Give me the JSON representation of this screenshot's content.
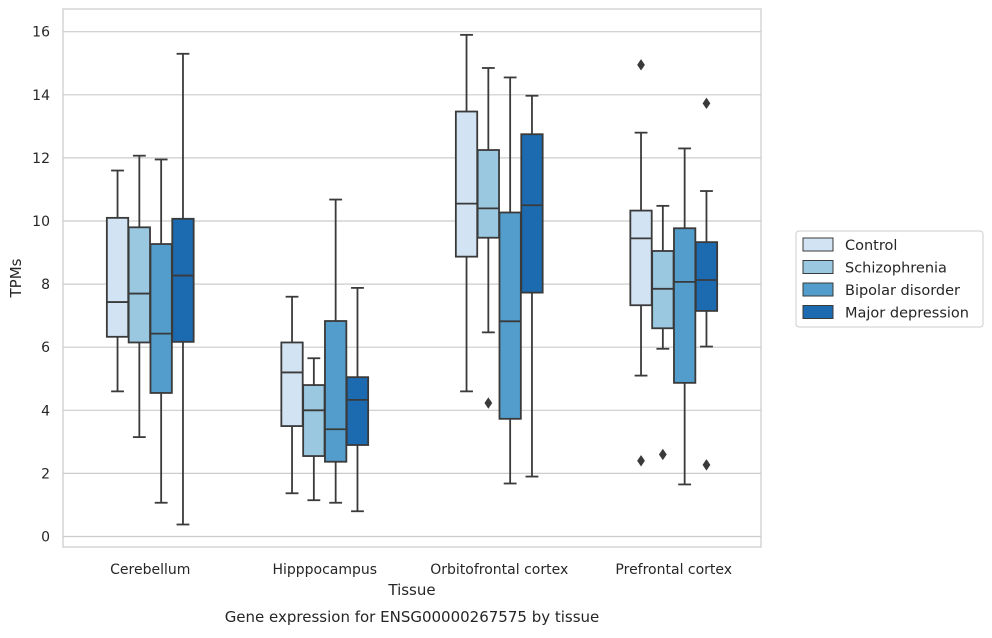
{
  "caption": "Gene expression for ENSG00000267575 by tissue",
  "chart_data": {
    "type": "boxplot",
    "xlabel": "Tissue",
    "ylabel": "TPMs",
    "ylim": [
      -0.35,
      16.7
    ],
    "yticks": [
      0,
      2,
      4,
      6,
      8,
      10,
      12,
      14,
      16
    ],
    "grid": true,
    "legend_placement": "right",
    "categories": [
      "Cerebellum",
      "Hipppocampus",
      "Orbitofrontal cortex",
      "Prefrontal cortex"
    ],
    "series": [
      {
        "name": "Control",
        "color": "#d2e3f3",
        "boxes": [
          {
            "whisker_low": 4.6,
            "q1": 6.33,
            "median": 7.43,
            "q3": 10.1,
            "whisker_high": 11.6,
            "outliers": []
          },
          {
            "whisker_low": 1.37,
            "q1": 3.5,
            "median": 5.2,
            "q3": 6.15,
            "whisker_high": 7.6,
            "outliers": []
          },
          {
            "whisker_low": 4.6,
            "q1": 8.87,
            "median": 10.55,
            "q3": 13.47,
            "whisker_high": 15.9,
            "outliers": []
          },
          {
            "whisker_low": 5.1,
            "q1": 7.33,
            "median": 9.45,
            "q3": 10.33,
            "whisker_high": 12.8,
            "outliers": [
              14.95,
              2.4
            ]
          }
        ]
      },
      {
        "name": "Schizophrenia",
        "color": "#9ac8e0",
        "boxes": [
          {
            "whisker_low": 3.15,
            "q1": 6.15,
            "median": 7.7,
            "q3": 9.8,
            "whisker_high": 12.07,
            "outliers": []
          },
          {
            "whisker_low": 1.15,
            "q1": 2.55,
            "median": 4.0,
            "q3": 4.8,
            "whisker_high": 5.65,
            "outliers": []
          },
          {
            "whisker_low": 6.47,
            "q1": 9.47,
            "median": 10.4,
            "q3": 12.25,
            "whisker_high": 14.85,
            "outliers": [
              4.23
            ]
          },
          {
            "whisker_low": 5.95,
            "q1": 6.6,
            "median": 7.85,
            "q3": 9.05,
            "whisker_high": 10.48,
            "outliers": [
              2.6
            ]
          }
        ]
      },
      {
        "name": "Bipolar disorder",
        "color": "#529dcc",
        "boxes": [
          {
            "whisker_low": 1.07,
            "q1": 4.55,
            "median": 6.43,
            "q3": 9.27,
            "whisker_high": 11.95,
            "outliers": []
          },
          {
            "whisker_low": 1.07,
            "q1": 2.37,
            "median": 3.4,
            "q3": 6.83,
            "whisker_high": 10.68,
            "outliers": []
          },
          {
            "whisker_low": 1.68,
            "q1": 3.73,
            "median": 6.82,
            "q3": 10.27,
            "whisker_high": 14.55,
            "outliers": []
          },
          {
            "whisker_low": 1.65,
            "q1": 4.87,
            "median": 8.07,
            "q3": 9.77,
            "whisker_high": 12.3,
            "outliers": []
          }
        ]
      },
      {
        "name": "Major depression",
        "color": "#1c6aaf",
        "boxes": [
          {
            "whisker_low": 0.38,
            "q1": 6.17,
            "median": 8.27,
            "q3": 10.07,
            "whisker_high": 15.3,
            "outliers": []
          },
          {
            "whisker_low": 0.8,
            "q1": 2.9,
            "median": 4.33,
            "q3": 5.05,
            "whisker_high": 7.88,
            "outliers": []
          },
          {
            "whisker_low": 1.9,
            "q1": 7.73,
            "median": 10.5,
            "q3": 12.75,
            "whisker_high": 13.97,
            "outliers": []
          },
          {
            "whisker_low": 6.02,
            "q1": 7.15,
            "median": 8.13,
            "q3": 9.33,
            "whisker_high": 10.95,
            "outliers": [
              13.73,
              2.27
            ]
          }
        ]
      }
    ]
  }
}
